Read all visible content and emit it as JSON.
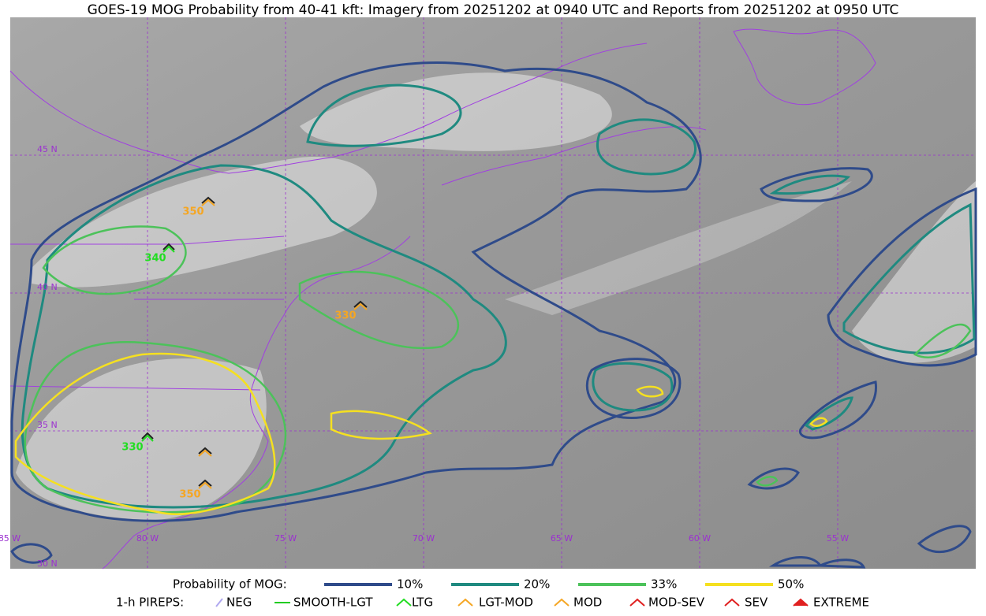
{
  "title": "GOES-19 MOG Probability from 40-41 kft: Imagery from 20251202 at 0940 UTC and Reports from 20251202 at 0950 UTC",
  "lat_labels": [
    "45 N",
    "40 N",
    "35 N",
    "30 N"
  ],
  "lon_labels": [
    "85 W",
    "80 W",
    "75 W",
    "70 W",
    "65 W",
    "60 W",
    "55 W"
  ],
  "pirep_reports": [
    {
      "label": "350",
      "color": "#f5a623"
    },
    {
      "label": "340",
      "color": "#22dd22"
    },
    {
      "label": "330",
      "color": "#f5a623"
    },
    {
      "label": "330",
      "color": "#22dd22"
    },
    {
      "label": "350",
      "color": "#f5a623"
    }
  ],
  "legend": {
    "probability_title": "Probability of MOG:",
    "levels": [
      {
        "label": "10%",
        "color": "#2f4b8a"
      },
      {
        "label": "20%",
        "color": "#1f8a80"
      },
      {
        "label": "33%",
        "color": "#4cc25a"
      },
      {
        "label": "50%",
        "color": "#f5e020"
      }
    ],
    "pirep_title": "1-h PIREPS:",
    "pirep_types": [
      {
        "label": "NEG",
        "color": "#b0a8f0"
      },
      {
        "label": "SMOOTH-LGT",
        "color": "#22cc22"
      },
      {
        "label": "LTG",
        "color": "#22dd22"
      },
      {
        "label": "LGT-MOD",
        "color": "#f5a623"
      },
      {
        "label": "MOD",
        "color": "#f5a623"
      },
      {
        "label": "MOD-SEV",
        "color": "#e02020"
      },
      {
        "label": "SEV",
        "color": "#e02020"
      },
      {
        "label": "EXTREME",
        "color": "#e02020"
      }
    ]
  }
}
